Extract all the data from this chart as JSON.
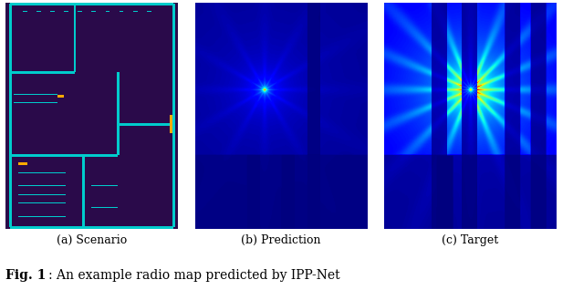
{
  "fig_width": 6.28,
  "fig_height": 3.18,
  "dpi": 100,
  "caption_main": "Fig. 1",
  "caption_text": ": An example radio map predicted by IPP-Net",
  "subfig_labels": [
    "(a) Scenario",
    "(b) Prediction",
    "(c) Target"
  ],
  "bg_color": "#ffffff",
  "scenario_bg": "#2a0a4a",
  "wall_color": "#00cccc",
  "dot_color_orange": "#ffaa00",
  "jet_cmap": "jet"
}
